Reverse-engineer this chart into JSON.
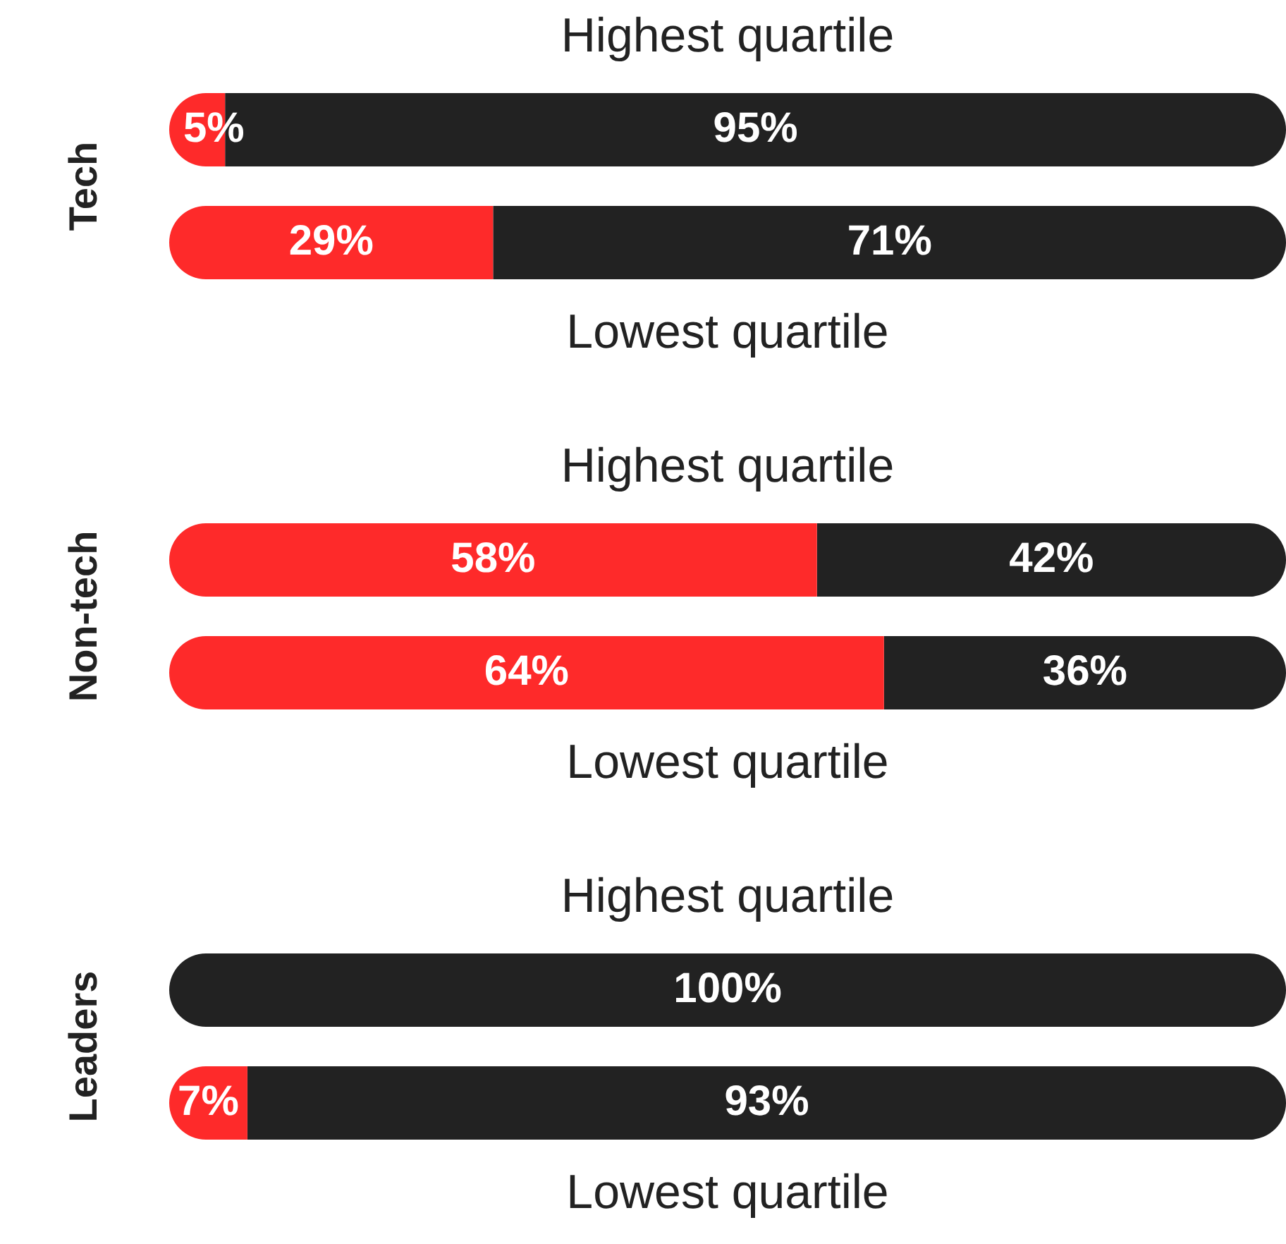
{
  "chart_data": [
    {
      "type": "bar",
      "orientation": "horizontal",
      "stacked": true,
      "ylabel": "Tech",
      "categories": [
        "Highest quartile",
        "Lowest quartile"
      ],
      "xlim": [
        0,
        100
      ],
      "tick_labels": "y",
      "series": [
        {
          "color": "#fe2a2a",
          "values": [
            5,
            29
          ],
          "value_labels": [
            "5%",
            "29%"
          ]
        },
        {
          "color": "#222222",
          "values": [
            95,
            71
          ],
          "value_labels": [
            "95%",
            "71%"
          ]
        }
      ]
    },
    {
      "type": "bar",
      "orientation": "horizontal",
      "stacked": true,
      "ylabel": "Non-tech",
      "categories": [
        "Highest quartile",
        "Lowest quartile"
      ],
      "xlim": [
        0,
        100
      ],
      "tick_labels": "y",
      "series": [
        {
          "color": "#fe2a2a",
          "values": [
            58,
            64
          ],
          "value_labels": [
            "58%",
            "64%"
          ]
        },
        {
          "color": "#222222",
          "values": [
            42,
            36
          ],
          "value_labels": [
            "42%",
            "36%"
          ]
        }
      ]
    },
    {
      "type": "bar",
      "orientation": "horizontal",
      "stacked": true,
      "ylabel": "Leaders",
      "categories": [
        "Highest quartile",
        "Lowest quartile"
      ],
      "xlim": [
        0,
        100
      ],
      "tick_labels": "y",
      "series": [
        {
          "color": "#fe2a2a",
          "values": [
            0,
            7
          ],
          "value_labels": [
            null,
            "7%"
          ]
        },
        {
          "color": "#222222",
          "values": [
            100,
            93
          ],
          "value_labels": [
            "100%",
            "93%"
          ]
        }
      ]
    }
  ]
}
